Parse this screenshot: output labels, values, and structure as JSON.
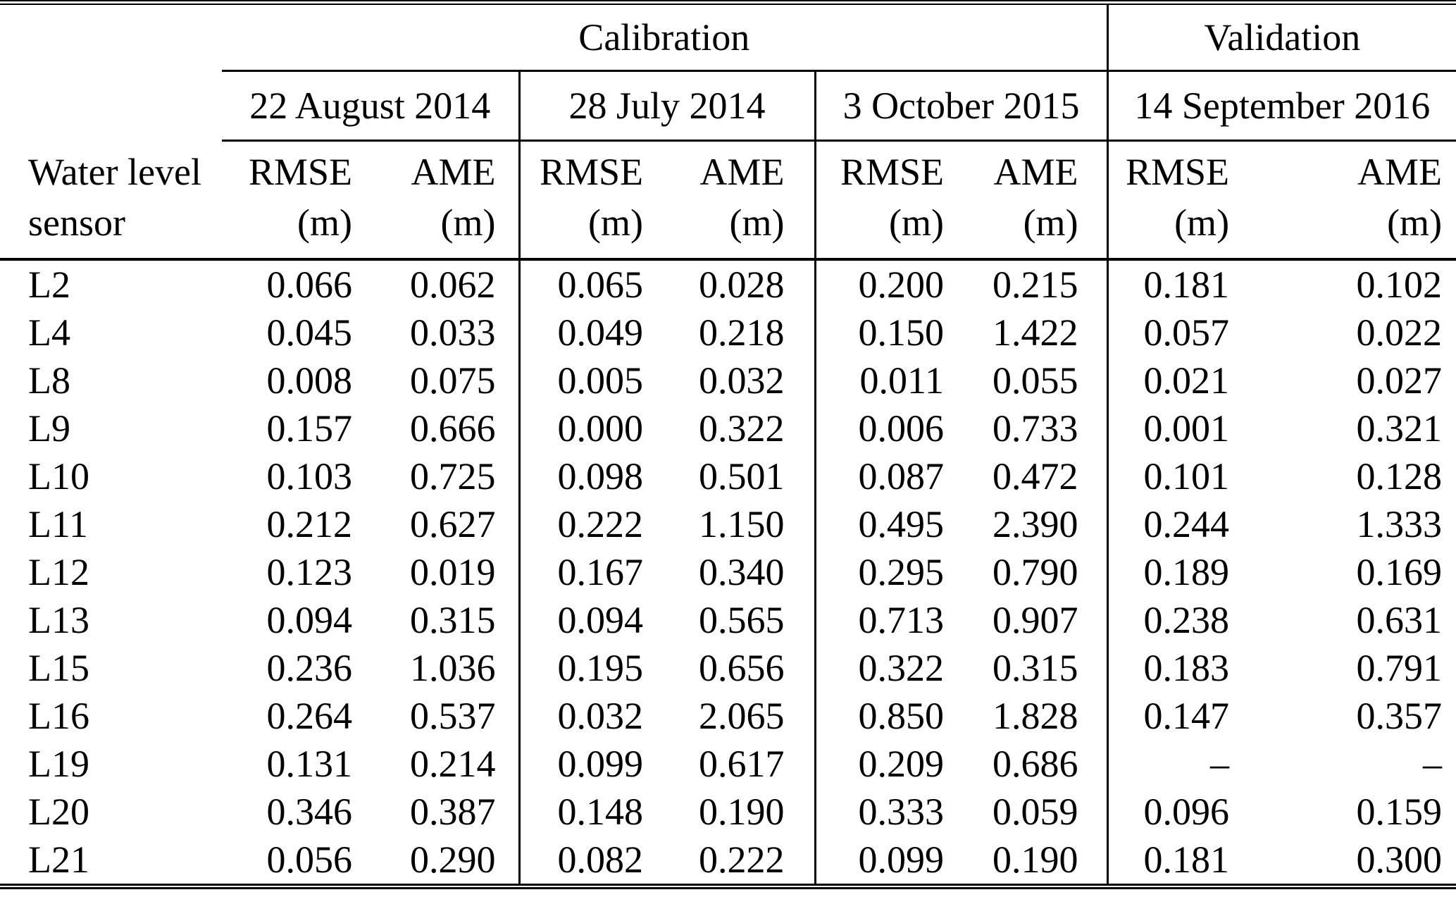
{
  "chart_data": {
    "type": "table",
    "sections": [
      {
        "label": "Calibration",
        "dates": [
          "22 August 2014",
          "28 July 2014",
          "3 October 2015"
        ]
      },
      {
        "label": "Validation",
        "dates": [
          "14 September 2016"
        ]
      }
    ],
    "row_header_lines": [
      "Water level",
      "sensor"
    ],
    "metric_labels": {
      "rmse": "RMSE",
      "ame": "AME",
      "unit": "(m)"
    },
    "missing_value_symbol": "–",
    "rows": [
      {
        "sensor": "L2",
        "values": [
          "0.066",
          "0.062",
          "0.065",
          "0.028",
          "0.200",
          "0.215",
          "0.181",
          "0.102"
        ]
      },
      {
        "sensor": "L4",
        "values": [
          "0.045",
          "0.033",
          "0.049",
          "0.218",
          "0.150",
          "1.422",
          "0.057",
          "0.022"
        ]
      },
      {
        "sensor": "L8",
        "values": [
          "0.008",
          "0.075",
          "0.005",
          "0.032",
          "0.011",
          "0.055",
          "0.021",
          "0.027"
        ]
      },
      {
        "sensor": "L9",
        "values": [
          "0.157",
          "0.666",
          "0.000",
          "0.322",
          "0.006",
          "0.733",
          "0.001",
          "0.321"
        ]
      },
      {
        "sensor": "L10",
        "values": [
          "0.103",
          "0.725",
          "0.098",
          "0.501",
          "0.087",
          "0.472",
          "0.101",
          "0.128"
        ]
      },
      {
        "sensor": "L11",
        "values": [
          "0.212",
          "0.627",
          "0.222",
          "1.150",
          "0.495",
          "2.390",
          "0.244",
          "1.333"
        ]
      },
      {
        "sensor": "L12",
        "values": [
          "0.123",
          "0.019",
          "0.167",
          "0.340",
          "0.295",
          "0.790",
          "0.189",
          "0.169"
        ]
      },
      {
        "sensor": "L13",
        "values": [
          "0.094",
          "0.315",
          "0.094",
          "0.565",
          "0.713",
          "0.907",
          "0.238",
          "0.631"
        ]
      },
      {
        "sensor": "L15",
        "values": [
          "0.236",
          "1.036",
          "0.195",
          "0.656",
          "0.322",
          "0.315",
          "0.183",
          "0.791"
        ]
      },
      {
        "sensor": "L16",
        "values": [
          "0.264",
          "0.537",
          "0.032",
          "2.065",
          "0.850",
          "1.828",
          "0.147",
          "0.357"
        ]
      },
      {
        "sensor": "L19",
        "values": [
          "0.131",
          "0.214",
          "0.099",
          "0.617",
          "0.209",
          "0.686",
          "–",
          "–"
        ]
      },
      {
        "sensor": "L20",
        "values": [
          "0.346",
          "0.387",
          "0.148",
          "0.190",
          "0.333",
          "0.059",
          "0.096",
          "0.159"
        ]
      },
      {
        "sensor": "L21",
        "values": [
          "0.056",
          "0.290",
          "0.082",
          "0.222",
          "0.099",
          "0.190",
          "0.181",
          "0.300"
        ]
      }
    ],
    "colors": {
      "text": "#000000",
      "background": "#ffffff",
      "rule": "#000000"
    }
  }
}
